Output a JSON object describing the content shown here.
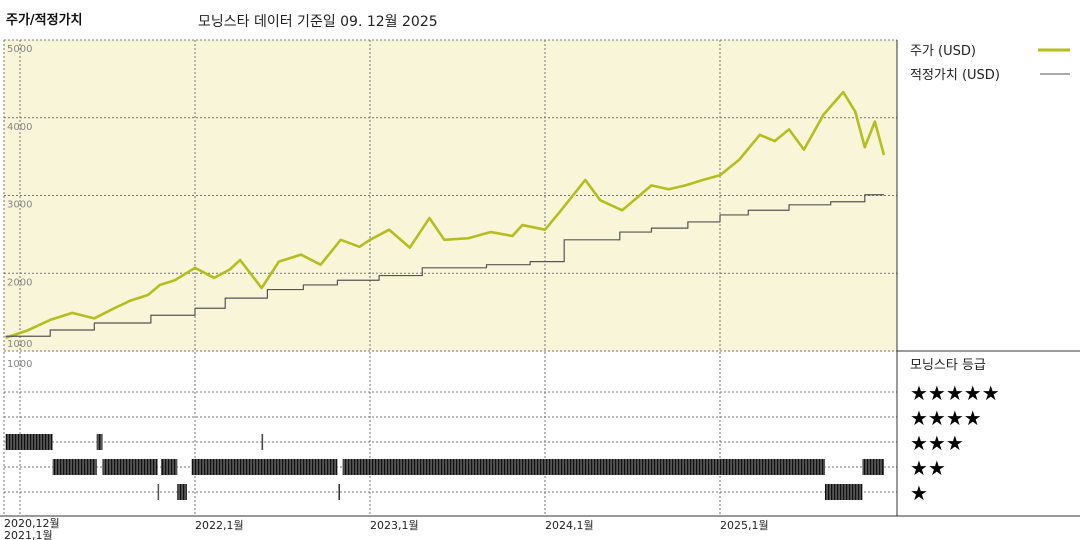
{
  "header": {
    "title": "주가/적정가치",
    "subtitle": "모닝스타 데이터 기준일 09. 12월 2025"
  },
  "legend": {
    "price_label": "주가 (USD)",
    "fair_value_label": "적정가치 (USD)",
    "rating_title": "모닝스타 등급",
    "rating_rows": [
      "★★★★★",
      "★★★★",
      "★★★",
      "★★",
      "★"
    ]
  },
  "colors": {
    "price": "#b5bd1f",
    "fair_value": "#555555",
    "plot_bg": "#f8f5d8",
    "rating_bar": "#333333"
  },
  "chart_data": [
    {
      "type": "line",
      "title": "주가/적정가치",
      "ylim": [
        1000,
        5000
      ],
      "yticks": [
        "5000",
        "4000",
        "3000",
        "2000",
        "1000"
      ],
      "xticks": [
        {
          "date": "2020-12-01",
          "label": "2020,12월"
        },
        {
          "date": "2021-01-01",
          "label": "2021,1월"
        },
        {
          "date": "2022-01-01",
          "label": "2022,1월"
        },
        {
          "date": "2023-01-01",
          "label": "2023,1월"
        },
        {
          "date": "2024-01-01",
          "label": "2024,1월"
        },
        {
          "date": "2025-01-01",
          "label": "2025,1월"
        }
      ],
      "grid": true,
      "legend_position": "right",
      "series": [
        {
          "name": "주가 (USD)",
          "points": [
            [
              "2020-12-01",
              1170
            ],
            [
              "2021-01-15",
              1260
            ],
            [
              "2021-03-05",
              1400
            ],
            [
              "2021-04-20",
              1490
            ],
            [
              "2021-06-05",
              1420
            ],
            [
              "2021-07-20",
              1560
            ],
            [
              "2021-08-20",
              1650
            ],
            [
              "2021-09-25",
              1720
            ],
            [
              "2021-10-20",
              1850
            ],
            [
              "2021-11-20",
              1910
            ],
            [
              "2022-01-01",
              2070
            ],
            [
              "2022-02-10",
              1940
            ],
            [
              "2022-03-15",
              2050
            ],
            [
              "2022-04-05",
              2170
            ],
            [
              "2022-05-20",
              1810
            ],
            [
              "2022-06-25",
              2150
            ],
            [
              "2022-08-10",
              2240
            ],
            [
              "2022-09-20",
              2110
            ],
            [
              "2022-11-01",
              2430
            ],
            [
              "2022-12-10",
              2340
            ],
            [
              "2023-01-01",
              2430
            ],
            [
              "2023-02-10",
              2560
            ],
            [
              "2023-03-25",
              2330
            ],
            [
              "2023-05-05",
              2710
            ],
            [
              "2023-06-05",
              2430
            ],
            [
              "2023-07-25",
              2450
            ],
            [
              "2023-09-10",
              2530
            ],
            [
              "2023-10-25",
              2480
            ],
            [
              "2023-11-15",
              2620
            ],
            [
              "2024-01-01",
              2560
            ],
            [
              "2024-02-01",
              2790
            ],
            [
              "2024-03-25",
              3200
            ],
            [
              "2024-04-25",
              2940
            ],
            [
              "2024-06-10",
              2810
            ],
            [
              "2024-08-10",
              3130
            ],
            [
              "2024-09-15",
              3080
            ],
            [
              "2024-10-20",
              3130
            ],
            [
              "2024-11-25",
              3200
            ],
            [
              "2025-01-01",
              3260
            ],
            [
              "2025-02-10",
              3460
            ],
            [
              "2025-03-25",
              3780
            ],
            [
              "2025-04-25",
              3700
            ],
            [
              "2025-05-25",
              3850
            ],
            [
              "2025-06-25",
              3590
            ],
            [
              "2025-08-05",
              4040
            ],
            [
              "2025-09-15",
              4330
            ],
            [
              "2025-10-10",
              4080
            ],
            [
              "2025-10-30",
              3620
            ],
            [
              "2025-11-20",
              3950
            ],
            [
              "2025-12-09",
              3520
            ]
          ]
        },
        {
          "name": "적정가치 (USD)",
          "step": true,
          "points": [
            [
              "2020-12-01",
              1190
            ],
            [
              "2021-03-05",
              1270
            ],
            [
              "2021-06-05",
              1360
            ],
            [
              "2021-10-01",
              1460
            ],
            [
              "2022-01-01",
              1550
            ],
            [
              "2022-03-05",
              1680
            ],
            [
              "2022-06-01",
              1790
            ],
            [
              "2022-08-15",
              1850
            ],
            [
              "2022-10-25",
              1910
            ],
            [
              "2023-01-20",
              1970
            ],
            [
              "2023-04-20",
              2070
            ],
            [
              "2023-09-01",
              2110
            ],
            [
              "2023-12-01",
              2150
            ],
            [
              "2024-02-10",
              2430
            ],
            [
              "2024-06-05",
              2530
            ],
            [
              "2024-08-10",
              2580
            ],
            [
              "2024-10-25",
              2660
            ],
            [
              "2025-01-01",
              2750
            ],
            [
              "2025-03-01",
              2810
            ],
            [
              "2025-05-25",
              2880
            ],
            [
              "2025-08-20",
              2920
            ],
            [
              "2025-10-30",
              3010
            ],
            [
              "2025-12-09",
              3010
            ]
          ]
        }
      ]
    },
    {
      "type": "timeline",
      "title": "모닝스타 등급",
      "rows": [
        5,
        4,
        3,
        2,
        1
      ],
      "ylabel_tick": "1000",
      "segments": [
        {
          "stars": 3,
          "start": "2020-12-01",
          "end": "2021-03-10"
        },
        {
          "stars": 3,
          "start": "2021-06-10",
          "end": "2021-06-22"
        },
        {
          "stars": 3,
          "start": "2022-05-20",
          "end": "2022-05-21"
        },
        {
          "stars": 2,
          "start": "2021-03-10",
          "end": "2021-06-10"
        },
        {
          "stars": 2,
          "start": "2021-06-22",
          "end": "2021-10-15"
        },
        {
          "stars": 2,
          "start": "2021-10-22",
          "end": "2021-11-25"
        },
        {
          "stars": 2,
          "start": "2021-12-25",
          "end": "2022-10-25"
        },
        {
          "stars": 2,
          "start": "2022-11-05",
          "end": "2025-08-08"
        },
        {
          "stars": 2,
          "start": "2025-10-25",
          "end": "2025-12-09"
        },
        {
          "stars": 1,
          "start": "2021-10-15",
          "end": "2021-10-17"
        },
        {
          "stars": 1,
          "start": "2021-11-25",
          "end": "2021-12-15"
        },
        {
          "stars": 1,
          "start": "2022-10-27",
          "end": "2022-10-30"
        },
        {
          "stars": 1,
          "start": "2025-08-08",
          "end": "2025-10-25"
        }
      ]
    }
  ]
}
